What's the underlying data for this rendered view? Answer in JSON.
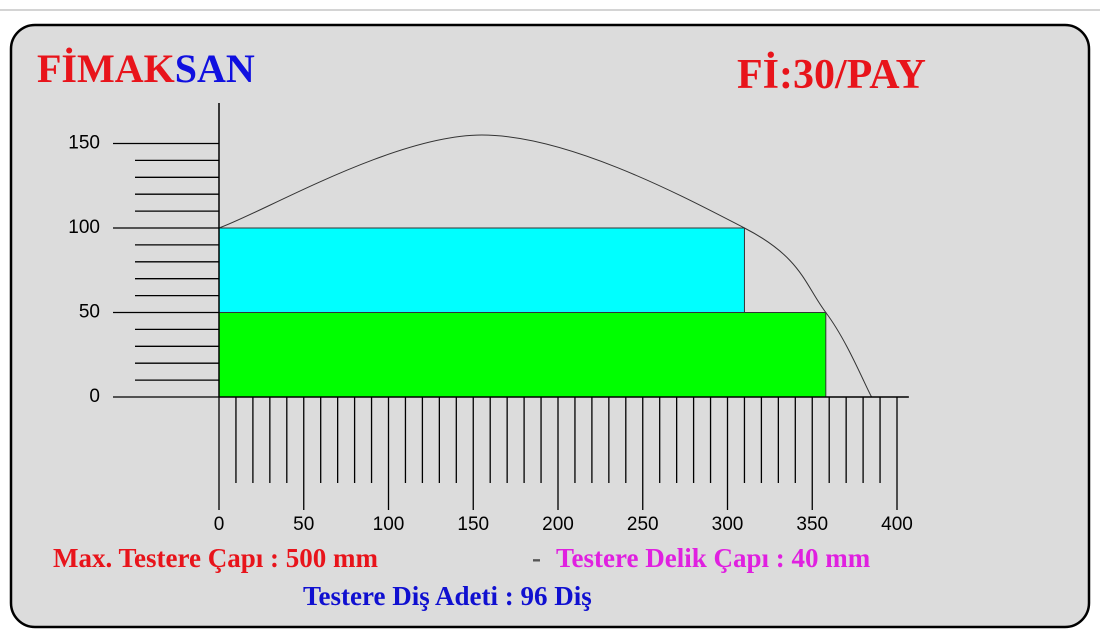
{
  "header": {
    "brand_red": "FİMAK",
    "brand_blue": "SAN",
    "model": "Fİ:30/PAY"
  },
  "chart_data": {
    "type": "capacity",
    "xlim": [
      0,
      407
    ],
    "ylim": [
      0,
      174
    ],
    "xticks": [
      0,
      50,
      100,
      150,
      200,
      250,
      300,
      350,
      400
    ],
    "yticks": [
      0,
      50,
      100,
      150
    ],
    "xminorticks": [
      10,
      20,
      30,
      40,
      60,
      70,
      80,
      90,
      110,
      120,
      130,
      140,
      160,
      170,
      180,
      190,
      210,
      220,
      230,
      240,
      260,
      270,
      280,
      290,
      310,
      320,
      330,
      340,
      360,
      370,
      380,
      390
    ],
    "yminorticks": [
      10,
      20,
      30,
      40,
      60,
      70,
      80,
      90,
      110,
      120,
      130,
      140
    ],
    "blocks": [
      {
        "color": "#00ffff",
        "x": [
          0,
          310
        ],
        "y": [
          50,
          100
        ]
      },
      {
        "color": "#00ff00",
        "x": [
          0,
          358
        ],
        "y": [
          0,
          50
        ]
      }
    ],
    "curve": {
      "x": [
        0,
        155,
        310,
        358,
        385
      ],
      "y": [
        100,
        155,
        100,
        50,
        0
      ]
    }
  },
  "footer": {
    "max_diameter": "Max. Testere Çapı : 500 mm",
    "separator": "-",
    "bore": "Testere Delik Çapı : 40 mm",
    "teeth": "Testere Diş Adeti : 96 Diş"
  }
}
